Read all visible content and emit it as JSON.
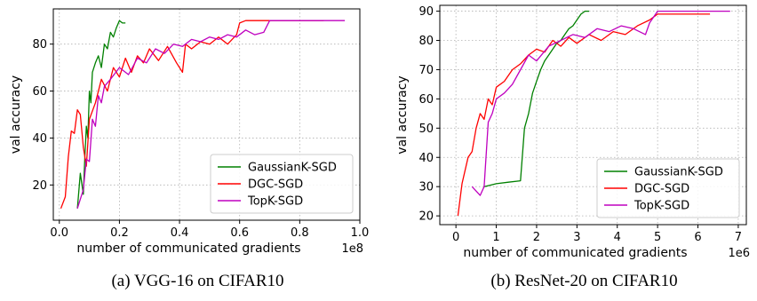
{
  "colors": {
    "GaussianK-SGD": "#008000",
    "DGC-SGD": "#ff0000",
    "TopK-SGD": "#bf00bf"
  },
  "chart_data": [
    {
      "type": "line",
      "caption": "(a)  VGG-16 on CIFAR10",
      "xlabel": "number of communicated gradients",
      "ylabel": "val accuracy",
      "x_multiplier": "1e8",
      "xlim": [
        -0.02,
        1.0
      ],
      "ylim": [
        5,
        95
      ],
      "xticks": [
        0.0,
        0.2,
        0.4,
        0.6,
        0.8,
        1.0
      ],
      "xtick_labels": [
        "0.0",
        "0.2",
        "0.4",
        "0.6",
        "0.8",
        "1.0"
      ],
      "yticks": [
        20,
        40,
        60,
        80
      ],
      "ytick_labels": [
        "20",
        "40",
        "60",
        "80"
      ],
      "grid": true,
      "legend_position": "bottom-right",
      "series": [
        {
          "name": "GaussianK-SGD",
          "x": [
            0.06,
            0.07,
            0.08,
            0.085,
            0.09,
            0.095,
            0.1,
            0.105,
            0.11,
            0.12,
            0.13,
            0.14,
            0.15,
            0.16,
            0.17,
            0.18,
            0.19,
            0.2,
            0.21,
            0.22
          ],
          "y": [
            10,
            25,
            16,
            32,
            45,
            40,
            60,
            55,
            68,
            72,
            75,
            70,
            80,
            78,
            85,
            83,
            87,
            90,
            89,
            89
          ]
        },
        {
          "name": "DGC-SGD",
          "x": [
            0.005,
            0.02,
            0.03,
            0.04,
            0.05,
            0.06,
            0.07,
            0.08,
            0.09,
            0.1,
            0.12,
            0.14,
            0.16,
            0.18,
            0.2,
            0.22,
            0.24,
            0.26,
            0.28,
            0.3,
            0.33,
            0.36,
            0.39,
            0.41,
            0.42,
            0.44,
            0.47,
            0.5,
            0.53,
            0.56,
            0.59,
            0.6,
            0.62,
            0.65,
            0.7,
            0.75,
            0.8,
            0.85,
            0.88
          ],
          "y": [
            10,
            15,
            32,
            43,
            42,
            52,
            50,
            36,
            28,
            48,
            55,
            65,
            60,
            70,
            66,
            74,
            68,
            75,
            72,
            78,
            73,
            79,
            72,
            68,
            80,
            78,
            81,
            80,
            83,
            80,
            84,
            89,
            90,
            90,
            90,
            90,
            90,
            90,
            90
          ]
        },
        {
          "name": "TopK-SGD",
          "x": [
            0.06,
            0.08,
            0.09,
            0.1,
            0.11,
            0.12,
            0.13,
            0.14,
            0.15,
            0.17,
            0.2,
            0.23,
            0.26,
            0.29,
            0.32,
            0.35,
            0.38,
            0.41,
            0.44,
            0.47,
            0.5,
            0.53,
            0.56,
            0.59,
            0.62,
            0.65,
            0.68,
            0.7,
            0.73,
            0.76,
            0.8,
            0.85,
            0.9,
            0.95
          ],
          "y": [
            10,
            18,
            31,
            30,
            48,
            45,
            58,
            55,
            62,
            65,
            70,
            67,
            74,
            72,
            78,
            76,
            80,
            79,
            82,
            81,
            83,
            82,
            84,
            83,
            86,
            84,
            85,
            90,
            90,
            90,
            90,
            90,
            90,
            90
          ]
        }
      ]
    },
    {
      "type": "line",
      "caption": "(b)  ResNet-20 on CIFAR10",
      "xlabel": "number of communicated gradients",
      "ylabel": "val accuracy",
      "x_multiplier": "1e6",
      "xlim": [
        -0.4,
        7.2
      ],
      "ylim": [
        17,
        92
      ],
      "xticks": [
        0,
        1,
        2,
        3,
        4,
        5,
        6,
        7
      ],
      "xtick_labels": [
        "0",
        "1",
        "2",
        "3",
        "4",
        "5",
        "6",
        "7"
      ],
      "yticks": [
        20,
        30,
        40,
        50,
        60,
        70,
        80,
        90
      ],
      "ytick_labels": [
        "20",
        "30",
        "40",
        "50",
        "60",
        "70",
        "80",
        "90"
      ],
      "grid": true,
      "legend_position": "bottom-right",
      "series": [
        {
          "name": "GaussianK-SGD",
          "x": [
            0.7,
            1.0,
            1.3,
            1.6,
            1.7,
            1.8,
            1.9,
            2.0,
            2.1,
            2.2,
            2.3,
            2.4,
            2.5,
            2.6,
            2.7,
            2.8,
            2.9,
            3.0,
            3.1,
            3.2,
            3.3
          ],
          "y": [
            30,
            31,
            31.5,
            32,
            50,
            55,
            62,
            66,
            70,
            73,
            75,
            77,
            79,
            80,
            82,
            84,
            85,
            87,
            89,
            90,
            90
          ]
        },
        {
          "name": "DGC-SGD",
          "x": [
            0.05,
            0.15,
            0.3,
            0.4,
            0.5,
            0.6,
            0.7,
            0.8,
            0.9,
            1.0,
            1.2,
            1.4,
            1.6,
            1.8,
            2.0,
            2.2,
            2.4,
            2.6,
            2.8,
            3.0,
            3.3,
            3.6,
            3.9,
            4.2,
            4.5,
            4.8,
            5.0,
            5.3,
            5.6,
            6.0,
            6.3
          ],
          "y": [
            20,
            31,
            40,
            42,
            50,
            55,
            53,
            60,
            58,
            64,
            66,
            70,
            72,
            75,
            77,
            76,
            80,
            78,
            81,
            79,
            82,
            80,
            83,
            82,
            85,
            87,
            89,
            89,
            89,
            89,
            89
          ]
        },
        {
          "name": "TopK-SGD",
          "x": [
            0.4,
            0.6,
            0.7,
            0.8,
            0.9,
            1.0,
            1.2,
            1.4,
            1.6,
            1.8,
            2.0,
            2.3,
            2.6,
            2.9,
            3.2,
            3.5,
            3.8,
            4.1,
            4.4,
            4.7,
            4.8,
            4.9,
            5.0,
            5.3,
            5.6,
            6.0,
            6.4,
            6.8
          ],
          "y": [
            30,
            27,
            30,
            52,
            55,
            60,
            62,
            65,
            70,
            75,
            73,
            78,
            80,
            82,
            81,
            84,
            83,
            85,
            84,
            82,
            86,
            88,
            90,
            90,
            90,
            90,
            90,
            90
          ]
        }
      ]
    }
  ]
}
